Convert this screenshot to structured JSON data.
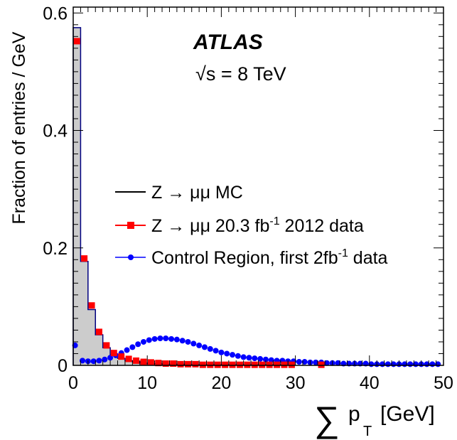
{
  "chart_data": {
    "type": "line",
    "experiment": "ATLAS",
    "energy_label": "√s = 8 TeV",
    "xlabel": {
      "symbol": "∑",
      "var": "p",
      "sub": "T",
      "unit": "[GeV]"
    },
    "ylabel": "Fraction of entries / GeV",
    "xlim": [
      0,
      50
    ],
    "ylim": [
      0,
      0.61
    ],
    "xticks": [
      "0",
      "10",
      "20",
      "30",
      "40",
      "50"
    ],
    "yticks": [
      "0",
      "0.2",
      "0.4",
      "0.6"
    ],
    "ytick_values": [
      0,
      0.2,
      0.4,
      0.6
    ],
    "legend_position": "center-right",
    "legend": [
      {
        "text": "Z → μμ MC"
      },
      {
        "text": "Z → μμ  20.3 fb",
        "sup": "-1",
        "tail": " 2012 data"
      },
      {
        "text": "Control Region, first 2fb",
        "sup": "-1",
        "tail": " data"
      }
    ],
    "colors": {
      "mc_line": "#000080",
      "mc_fill": "#cccccc",
      "data": "#ff0000",
      "control": "#0000ff"
    },
    "series": [
      {
        "type": "histogram",
        "bin_width": 1,
        "x_edges_start": 0,
        "values": [
          0.575,
          0.177,
          0.095,
          0.052,
          0.03,
          0.018,
          0.012,
          0.008,
          0.006,
          0.004,
          0.003,
          0.003,
          0.002,
          0.002,
          0.002,
          0.001,
          0.001,
          0.001,
          0.001,
          0.001,
          0.001,
          0.001,
          0.001,
          0.001,
          0.001,
          0.001,
          0.001,
          0.001,
          0.001,
          0.001
        ]
      },
      {
        "type": "markers",
        "marker": "square",
        "x": [
          0.5,
          1.5,
          2.5,
          3.5,
          4.5,
          5.5,
          6.5,
          7.5,
          8.5,
          9.5,
          10.5,
          11.5,
          12.5,
          13.5,
          14.5,
          15.5,
          16.5,
          17.5,
          18.5,
          19.5,
          20.5,
          21.5,
          22.5,
          23.5,
          24.5,
          25.5,
          26.5,
          27.5,
          28.5,
          29.5,
          33.5
        ],
        "y": [
          0.552,
          0.182,
          0.102,
          0.057,
          0.034,
          0.021,
          0.015,
          0.011,
          0.008,
          0.006,
          0.005,
          0.004,
          0.003,
          0.003,
          0.002,
          0.002,
          0.002,
          0.001,
          0.001,
          0.001,
          0.001,
          0.001,
          0.001,
          0.001,
          0.001,
          0.001,
          0.001,
          0.001,
          0.001,
          0.001,
          0.001
        ]
      },
      {
        "type": "markers",
        "marker": "circle",
        "x": [
          0.25,
          1.25,
          2.0,
          2.75,
          3.5,
          4.25,
          5.0,
          5.75,
          6.5,
          7.25,
          8.0,
          8.75,
          9.5,
          10.25,
          11.0,
          11.75,
          12.5,
          13.25,
          14.0,
          14.75,
          15.5,
          16.25,
          17.0,
          17.75,
          18.5,
          19.25,
          20.0,
          20.75,
          21.5,
          22.25,
          23.0,
          23.75,
          24.5,
          25.25,
          26.0,
          26.75,
          27.5,
          28.25,
          29.0,
          29.75,
          30.5,
          31.25,
          32.0,
          32.75,
          33.5,
          34.25,
          35.0,
          35.75,
          36.5,
          37.25,
          38.0,
          38.75,
          39.5,
          40.25,
          41.0,
          41.75,
          42.5,
          43.25,
          44.0,
          44.75,
          45.5,
          46.25,
          47.0,
          47.75,
          48.5,
          49.25
        ],
        "y": [
          0.034,
          0.008,
          0.007,
          0.007,
          0.008,
          0.01,
          0.013,
          0.017,
          0.021,
          0.026,
          0.031,
          0.036,
          0.04,
          0.043,
          0.045,
          0.046,
          0.046,
          0.045,
          0.044,
          0.042,
          0.04,
          0.037,
          0.034,
          0.031,
          0.028,
          0.025,
          0.022,
          0.02,
          0.018,
          0.016,
          0.014,
          0.013,
          0.012,
          0.011,
          0.01,
          0.009,
          0.008,
          0.008,
          0.007,
          0.007,
          0.006,
          0.006,
          0.005,
          0.005,
          0.005,
          0.004,
          0.004,
          0.004,
          0.003,
          0.003,
          0.003,
          0.003,
          0.003,
          0.002,
          0.002,
          0.002,
          0.002,
          0.002,
          0.002,
          0.002,
          0.002,
          0.002,
          0.002,
          0.002,
          0.002,
          0.002
        ]
      }
    ]
  }
}
